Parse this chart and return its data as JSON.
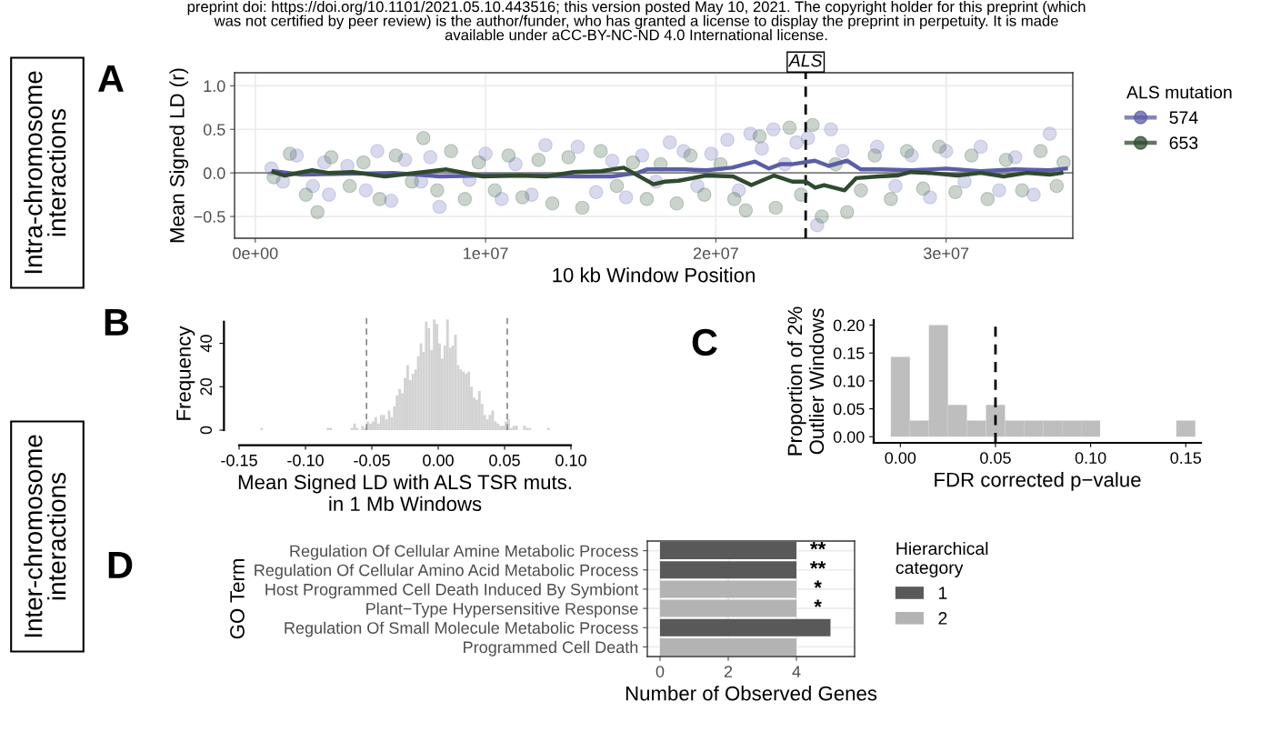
{
  "chart_data": [
    {
      "type": "line",
      "xlabel": "10 kb Window Position",
      "ylabel": "Mean Signed LD (r)",
      "legend_title": "ALS mutation",
      "legend": "right",
      "grid": true,
      "xlim": [
        -900000,
        35500000
      ],
      "ylim": [
        -0.75,
        1.15
      ],
      "xticks": [
        {
          "value": 0,
          "label": "0e+00"
        },
        {
          "value": 10000000,
          "label": "1e+07"
        },
        {
          "value": 20000000,
          "label": "2e+07"
        },
        {
          "value": 30000000,
          "label": "3e+07"
        }
      ],
      "yticks": [
        {
          "value": -0.5,
          "label": "−0.5"
        },
        {
          "value": 0,
          "label": "0.0"
        },
        {
          "value": 0.5,
          "label": "0.5"
        },
        {
          "value": 1.0,
          "label": "1.0"
        }
      ],
      "ref_lines": [
        {
          "axis": "y",
          "value": 0,
          "color": "#7f7f7f",
          "line_style": "solid"
        },
        {
          "axis": "x",
          "value": 23900000,
          "label": "ALS",
          "color": "#000000",
          "line_style": "dashed"
        }
      ],
      "annotations": [
        "preprint doi: https://doi.org/10.1101/2021.05.10.443516; this version posted May 10, 2021. The copyright holder for this preprint (which\nwas not certified by peer review) is the author/funder, who has granted a license to display the preprint in perpetuity. It is made\navailable under aCC-BY-NC-ND 4.0 International license.",
        "A",
        "Intra-chromosome\ninteractions"
      ],
      "series": [
        {
          "type": "scatter",
          "color": "#8080c8",
          "marker": "circle",
          "x": [
            700000,
            1200000,
            1800000,
            2500000,
            3000000,
            3200000,
            4000000,
            4800000,
            5300000,
            5900000,
            6500000,
            7200000,
            7600000,
            8000000,
            8600000,
            9300000,
            10000000,
            10700000,
            11300000,
            12000000,
            12600000,
            13300000,
            14000000,
            14800000,
            15500000,
            16100000,
            16800000,
            17400000,
            18000000,
            18600000,
            19200000,
            19800000,
            20500000,
            21000000,
            21500000,
            22000000,
            22500000,
            23000000,
            23500000,
            24000000,
            24400000,
            25000000,
            25500000,
            26200000,
            27000000,
            27800000,
            28500000,
            29300000,
            30000000,
            30800000,
            31500000,
            32300000,
            33000000,
            33800000,
            34500000
          ],
          "values": [
            0.05,
            -0.1,
            0.2,
            -0.15,
            0.12,
            -0.25,
            0.08,
            -0.2,
            0.25,
            -0.32,
            0.15,
            -0.1,
            0.18,
            -0.39,
            null,
            -0.08,
            0.22,
            -0.3,
            0.1,
            -0.25,
            0.32,
            null,
            0.3,
            -0.22,
            0.14,
            -0.28,
            0.2,
            -0.1,
            0.35,
            0.25,
            -0.15,
            0.22,
            0.38,
            -0.2,
            0.45,
            0.28,
            0.5,
            0.1,
            0.35,
            0.4,
            -0.6,
            0.5,
            0.25,
            null,
            0.3,
            -0.15,
            0.2,
            -0.28,
            0.25,
            -0.1,
            0.3,
            -0.2,
            0.18,
            -0.25,
            0.45
          ]
        },
        {
          "type": "scatter",
          "color": "#50705a",
          "marker": "circle",
          "x": [
            800000,
            1500000,
            2200000,
            2700000,
            3300000,
            4100000,
            4700000,
            5400000,
            6100000,
            6800000,
            7300000,
            7900000,
            8500000,
            9100000,
            9700000,
            10400000,
            11000000,
            11600000,
            12300000,
            12900000,
            13600000,
            14200000,
            15000000,
            15700000,
            16400000,
            17000000,
            17600000,
            18300000,
            18900000,
            19500000,
            20200000,
            20800000,
            21300000,
            21900000,
            22600000,
            23200000,
            23700000,
            24200000,
            24600000,
            25200000,
            25700000,
            26300000,
            26900000,
            27600000,
            28300000,
            29000000,
            29700000,
            30400000,
            31100000,
            31800000,
            32600000,
            33300000,
            34100000,
            34800000,
            35100000
          ],
          "values": [
            -0.05,
            0.22,
            -0.25,
            -0.45,
            0.18,
            -0.15,
            0.12,
            -0.3,
            0.2,
            -0.1,
            0.4,
            -0.2,
            0.25,
            -0.3,
            0.12,
            -0.2,
            0.2,
            -0.28,
            0.15,
            -0.35,
            0.18,
            -0.4,
            0.25,
            -0.15,
            0.12,
            -0.3,
            0.1,
            -0.35,
            0.2,
            -0.25,
            0.1,
            -0.3,
            -0.43,
            0.42,
            -0.4,
            0.52,
            -0.25,
            0.55,
            -0.5,
            0.1,
            -0.45,
            -0.2,
            0.2,
            -0.3,
            0.25,
            -0.18,
            0.3,
            -0.22,
            0.2,
            -0.3,
            0.15,
            -0.2,
            0.25,
            -0.15,
            0.12
          ]
        },
        {
          "type": "line",
          "name": "574",
          "color": "#5b5ea6",
          "x": [
            800000,
            2000000,
            4000000,
            6000000,
            8000000,
            10000000,
            12000000,
            14000000,
            15500000,
            16600000,
            17000000,
            18600000,
            19600000,
            20700000,
            21700000,
            22300000,
            22800000,
            23300000,
            24300000,
            24900000,
            25700000,
            26300000,
            27100000,
            28500000,
            30000000,
            31500000,
            33000000,
            34500000,
            35200000
          ],
          "values": [
            0.02,
            -0.02,
            -0.01,
            0.0,
            -0.04,
            -0.03,
            -0.03,
            -0.04,
            -0.04,
            0.0,
            0.04,
            0.04,
            0.03,
            0.06,
            0.13,
            0.05,
            0.1,
            0.1,
            0.14,
            0.08,
            0.14,
            0.04,
            0.04,
            0.03,
            0.05,
            0.02,
            0.04,
            0.03,
            0.05
          ]
        },
        {
          "type": "line",
          "name": "653",
          "color": "#2f4a2f",
          "x": [
            790000,
            1280000,
            2470000,
            3160000,
            4250000,
            5630000,
            7310000,
            8300000,
            9880000,
            11460000,
            12650000,
            13830000,
            15020000,
            16000000,
            17290000,
            17790000,
            18380000,
            19570000,
            20750000,
            21540000,
            22530000,
            23320000,
            23910000,
            24310000,
            24700000,
            25590000,
            26090000,
            27080000,
            27870000,
            28460000,
            29250000,
            30500000,
            31500000,
            32500000,
            33500000,
            34500000,
            35000000
          ],
          "values": [
            0.01,
            -0.03,
            0.03,
            0,
            0.01,
            -0.04,
            0.01,
            0.04,
            -0.04,
            -0.03,
            -0.04,
            0.01,
            0.02,
            0.06,
            -0.13,
            -0.1,
            -0.09,
            -0.03,
            -0.04,
            -0.14,
            -0.03,
            -0.1,
            -0.1,
            -0.17,
            -0.14,
            -0.2,
            -0.06,
            -0.04,
            -0.03,
            0.01,
            0,
            -0.03,
            0,
            -0.04,
            0,
            -0.02,
            0
          ]
        }
      ]
    },
    {
      "type": "histogram",
      "xlabel": "Mean Signed LD with ALS TSR muts.\nin 1 Mb Windows",
      "ylabel": "Frequency",
      "color": "#d3d3d3",
      "xlim": [
        -0.15,
        0.1
      ],
      "ylim": [
        0,
        52
      ],
      "xticks": [
        {
          "value": -0.15,
          "label": "-0.15"
        },
        {
          "value": -0.1,
          "label": "-0.10"
        },
        {
          "value": -0.05,
          "label": "-0.05"
        },
        {
          "value": 0,
          "label": "0.00"
        },
        {
          "value": 0.05,
          "label": "0.05"
        },
        {
          "value": 0.1,
          "label": "0.10"
        }
      ],
      "yticks": [
        0,
        20,
        40
      ],
      "ref_lines": [
        {
          "axis": "x",
          "value": -0.054,
          "color": "#888888",
          "line_style": "dashed"
        },
        {
          "axis": "x",
          "value": 0.052,
          "color": "#888888",
          "line_style": "dashed"
        }
      ],
      "annotations": [
        "B",
        "Inter-chromosome\ninteractions"
      ],
      "bins": [
        -0.134,
        -0.132,
        -0.13,
        -0.128,
        -0.126,
        -0.124,
        -0.122,
        -0.12,
        -0.118,
        -0.116,
        -0.114,
        -0.112,
        -0.11,
        -0.108,
        -0.106,
        -0.104,
        -0.102,
        -0.1,
        -0.098,
        -0.096,
        -0.094,
        -0.092,
        -0.09,
        -0.088,
        -0.086,
        -0.084,
        -0.082,
        -0.08,
        -0.078,
        -0.076,
        -0.074,
        -0.072,
        -0.07,
        -0.068,
        -0.066,
        -0.064,
        -0.062,
        -0.06,
        -0.058,
        -0.056,
        -0.054,
        -0.052,
        -0.05,
        -0.048,
        -0.046,
        -0.044,
        -0.042,
        -0.04,
        -0.038,
        -0.036,
        -0.034,
        -0.032,
        -0.03,
        -0.028,
        -0.026,
        -0.024,
        -0.022,
        -0.02,
        -0.018,
        -0.016,
        -0.014,
        -0.012,
        -0.01,
        -0.008,
        -0.006,
        -0.004,
        -0.002,
        0,
        0.002,
        0.004,
        0.006,
        0.008,
        0.01,
        0.012,
        0.014,
        0.016,
        0.018,
        0.02,
        0.022,
        0.024,
        0.026,
        0.028,
        0.03,
        0.032,
        0.034,
        0.036,
        0.038,
        0.04,
        0.042,
        0.044,
        0.046,
        0.048,
        0.05,
        0.052,
        0.054,
        0.056,
        0.058,
        0.06,
        0.062,
        0.064,
        0.066,
        0.068,
        0.07,
        0.072,
        0.074,
        0.076,
        0.078,
        0.08,
        0.082,
        0.084
      ],
      "values": [
        1,
        0,
        0,
        0,
        0,
        0,
        0,
        0,
        0,
        0,
        0,
        0,
        0,
        0,
        0,
        0,
        0,
        0,
        0,
        0,
        0,
        0,
        0,
        0,
        0,
        1,
        1,
        0,
        0,
        0,
        0,
        0,
        0,
        0,
        1,
        3,
        1,
        0,
        2,
        1,
        4,
        3,
        4,
        6,
        3,
        7,
        7,
        5,
        9,
        6,
        11,
        16,
        19,
        17,
        24,
        30,
        23,
        26,
        28,
        34,
        40,
        36,
        50,
        47,
        37,
        51,
        49,
        40,
        33,
        39,
        51,
        38,
        39,
        44,
        30,
        28,
        27,
        26,
        27,
        20,
        15,
        14,
        18,
        12,
        7,
        5,
        7,
        9,
        4,
        3,
        2,
        2,
        4,
        5,
        1,
        2,
        2,
        0,
        0,
        2,
        1,
        1,
        0,
        0,
        0,
        0,
        0,
        0,
        1
      ]
    },
    {
      "type": "histogram",
      "xlabel": "FDR corrected p−value",
      "ylabel": "Proportion of 2%\nOutlier Windows",
      "color": "#bebebe",
      "xlim": [
        -0.014,
        0.158
      ],
      "ylim": [
        -0.011,
        0.209
      ],
      "xticks": [
        {
          "value": 0,
          "label": "0.00"
        },
        {
          "value": 0.05,
          "label": "0.05"
        },
        {
          "value": 0.1,
          "label": "0.10"
        },
        {
          "value": 0.15,
          "label": "0.15"
        }
      ],
      "yticks": [
        {
          "value": 0,
          "label": "0.00"
        },
        {
          "value": 0.05,
          "label": "0.05"
        },
        {
          "value": 0.1,
          "label": "0.10"
        },
        {
          "value": 0.15,
          "label": "0.15"
        },
        {
          "value": 0.2,
          "label": "0.20"
        }
      ],
      "ref_lines": [
        {
          "axis": "x",
          "value": 0.05,
          "color": "#000000",
          "line_style": "dashed"
        }
      ],
      "annotations": [
        "C"
      ],
      "bins": [
        -0.005,
        0.005,
        0.015,
        0.025,
        0.035,
        0.045,
        0.055,
        0.065,
        0.075,
        0.085,
        0.095,
        0.105,
        0.115,
        0.125,
        0.135,
        0.145,
        0.155
      ],
      "values": [
        0.143,
        0.029,
        0.2,
        0.057,
        0.029,
        0.057,
        0.029,
        0.029,
        0.029,
        0.029,
        0.029,
        0,
        0,
        0,
        0,
        0.029
      ]
    },
    {
      "type": "bar",
      "orientation": "horizontal",
      "xlabel": "Number of Observed Genes",
      "ylabel": "GO Term",
      "legend_title": "Hierarchical\ncategory",
      "legend": "right",
      "grid": true,
      "xlim": [
        -0.373,
        5.707
      ],
      "xticks": [
        0,
        2,
        4
      ],
      "categories": [
        "Regulation Of Cellular Amine Metabolic Process",
        "Regulation Of Cellular Amino Acid Metabolic Process",
        "Host Programmed Cell Death Induced By Symbiont",
        "Plant−Type Hypersensitive Response",
        "Regulation Of Small Molecule Metabolic Process",
        "Programmed Cell Death"
      ],
      "series": [
        {
          "name": "1",
          "color": "#595959",
          "values": [
            4,
            4,
            null,
            null,
            5,
            null
          ]
        },
        {
          "name": "2",
          "color": "#b3b3b3",
          "values": [
            null,
            null,
            4,
            4,
            null,
            4
          ]
        }
      ],
      "annotations": [
        "D",
        "**",
        "**",
        "*",
        "*"
      ]
    }
  ]
}
